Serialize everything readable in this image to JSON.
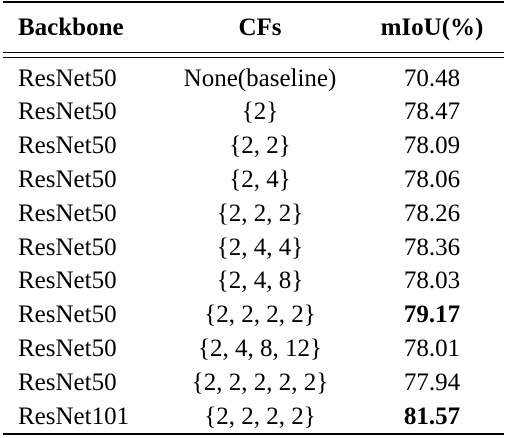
{
  "table": {
    "headers": {
      "backbone": "Backbone",
      "cfs": "CFs",
      "miou": "mIoU(%)"
    },
    "rows": [
      {
        "backbone": "ResNet50",
        "cfs": "None(baseline)",
        "miou": "70.48",
        "bold": false
      },
      {
        "backbone": "ResNet50",
        "cfs": "{2}",
        "miou": "78.47",
        "bold": false
      },
      {
        "backbone": "ResNet50",
        "cfs": "{2, 2}",
        "miou": "78.09",
        "bold": false
      },
      {
        "backbone": "ResNet50",
        "cfs": "{2, 4}",
        "miou": "78.06",
        "bold": false
      },
      {
        "backbone": "ResNet50",
        "cfs": "{2, 2, 2}",
        "miou": "78.26",
        "bold": false
      },
      {
        "backbone": "ResNet50",
        "cfs": "{2, 4, 4}",
        "miou": "78.36",
        "bold": false
      },
      {
        "backbone": "ResNet50",
        "cfs": "{2, 4, 8}",
        "miou": "78.03",
        "bold": false
      },
      {
        "backbone": "ResNet50",
        "cfs": "{2, 2, 2, 2}",
        "miou": "79.17",
        "bold": true
      },
      {
        "backbone": "ResNet50",
        "cfs": "{2, 4, 8, 12}",
        "miou": "78.01",
        "bold": false
      },
      {
        "backbone": "ResNet50",
        "cfs": "{2, 2, 2, 2, 2}",
        "miou": "77.94",
        "bold": false
      },
      {
        "backbone": "ResNet101",
        "cfs": "{2, 2, 2, 2}",
        "miou": "81.57",
        "bold": true
      }
    ]
  }
}
